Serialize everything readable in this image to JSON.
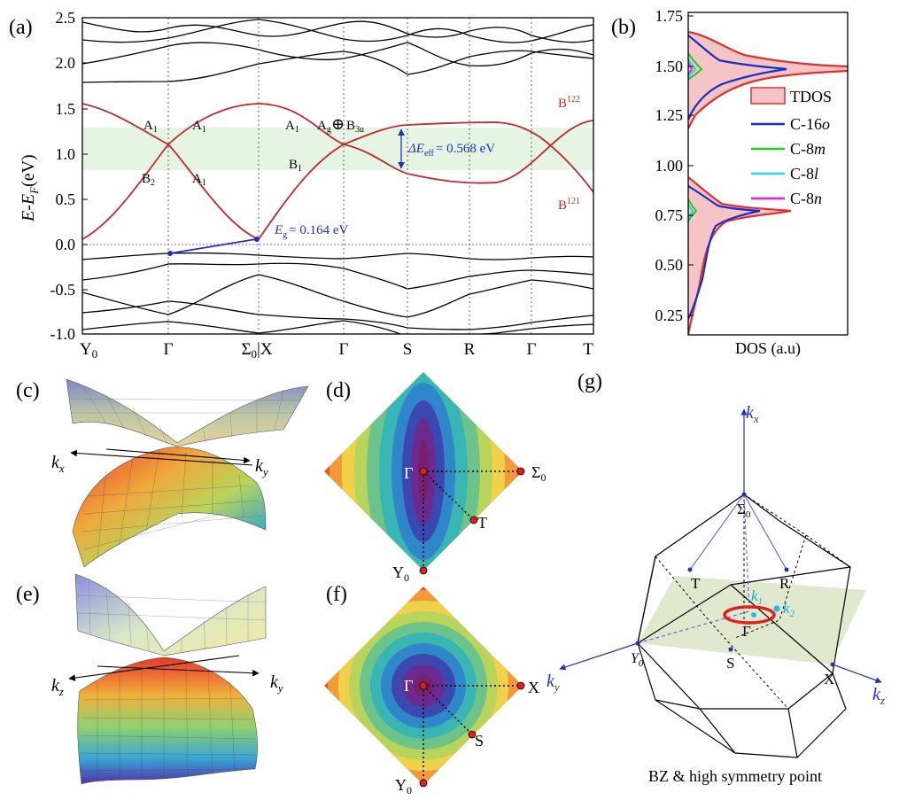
{
  "panel_labels": {
    "a": "(a)",
    "b": "(b)",
    "c": "(c)",
    "d": "(d)",
    "e": "(e)",
    "f": "(f)",
    "g": "(g)"
  },
  "band": {
    "ylabel_main": "E-E",
    "ylabel_sub": "F",
    "ylabel_unit": "(eV)",
    "yticks": [
      "2.5",
      "2.0",
      "1.5",
      "1.0",
      "0.5",
      "0.0",
      "-0.5",
      "-1.0"
    ],
    "xticks": [
      "Y",
      "Γ",
      "Σ",
      "|X",
      "Γ",
      "S",
      "R",
      "Γ",
      "T"
    ],
    "xtick_sub": "0",
    "irreps": {
      "A1": "A",
      "B2": "B",
      "B1": "B",
      "sub1": "1",
      "sub2": "2",
      "Ag": "A",
      "g": "g",
      "oplus": "⊕",
      "B3u": "B",
      "sub3u": "3u"
    },
    "B122": "B",
    "B122_sup": "122",
    "B121": "B",
    "B121_sup": "121",
    "deff_label": "ΔE",
    "deff_sub": "eff",
    "deff_val": "= 0.568 eV",
    "eg_label": "E",
    "eg_sub": "g",
    "eg_val": "= 0.164 eV",
    "colors": {
      "bands": "#000000",
      "highlight": "#c0282a",
      "gap": "#2030c0",
      "window": "#e6f4e4"
    }
  },
  "dos": {
    "yticks": [
      "1.75",
      "1.50",
      "1.25",
      "1.00",
      "0.75",
      "0.50",
      "0.25"
    ],
    "xlabel": "DOS (a.u)",
    "legend": [
      {
        "label": "TDOS",
        "main": "TDOS",
        "it": "",
        "color": "#e33b3b"
      },
      {
        "label": "C-16o",
        "main": "C-16",
        "it": "o",
        "color": "#1a2ec8"
      },
      {
        "label": "C-8m",
        "main": "C-8",
        "it": "m",
        "color": "#22cc22"
      },
      {
        "label": "C-8l",
        "main": "C-8",
        "it": "l",
        "color": "#22d8e8"
      },
      {
        "label": "C-8n",
        "main": "C-8",
        "it": "n",
        "color": "#e020e0"
      }
    ]
  },
  "panel_c": {
    "kx": "k",
    "kx_sub": "x",
    "ky": "k",
    "ky_sub": "y"
  },
  "panel_e": {
    "kz": "k",
    "kz_sub": "z",
    "ky": "k",
    "ky_sub": "y"
  },
  "panel_d": {
    "gamma": "Γ",
    "sigma": "Σ",
    "sigma_sub": "0",
    "t": "T",
    "y": "Y",
    "y_sub": "0"
  },
  "panel_f": {
    "gamma": "Γ",
    "x": "X",
    "s": "S",
    "y": "Y",
    "y_sub": "0"
  },
  "panel_g": {
    "kx": "k",
    "kx_sub": "x",
    "ky": "k",
    "ky_sub": "y",
    "kz": "k",
    "kz_sub": "z",
    "sigma": "Σ",
    "sigma_sub": "0",
    "T": "T",
    "R": "R",
    "k1": "k",
    "k1_sub": "1",
    "k2": "k",
    "k2_sub": "2",
    "gamma": "Γ",
    "Y": "Y",
    "Y_sub": "0",
    "S": "S",
    "X": "X",
    "caption": "BZ & high symmetry point"
  }
}
